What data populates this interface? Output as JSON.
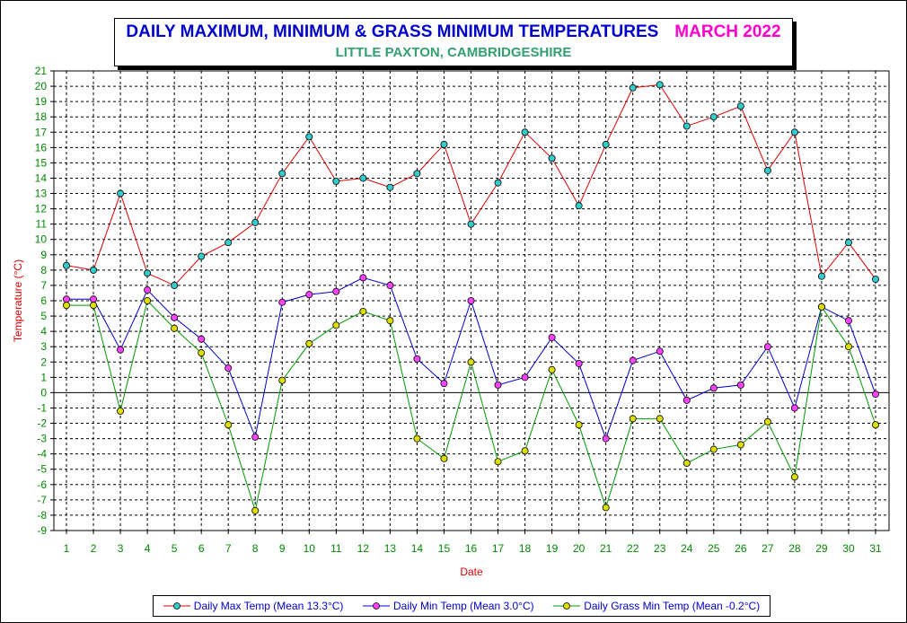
{
  "chart_data": {
    "type": "line",
    "title": "DAILY MAXIMUM, MINIMUM & GRASS MINIMUM TEMPERATURES",
    "title_date": "MARCH 2022",
    "subtitle": "LITTLE PAXTON, CAMBRIDGESHIRE",
    "xlabel": "Date",
    "ylabel": "Temperature (°C)",
    "ylim": [
      -9,
      21
    ],
    "grid": true,
    "legend_position": "bottom",
    "x": [
      1,
      2,
      3,
      4,
      5,
      6,
      7,
      8,
      9,
      10,
      11,
      12,
      13,
      14,
      15,
      16,
      17,
      18,
      19,
      20,
      21,
      22,
      23,
      24,
      25,
      26,
      27,
      28,
      29,
      30,
      31
    ],
    "series": [
      {
        "name": "Daily Max Temp (Mean 13.3°C)",
        "line_color": "#dd0000",
        "marker_color": "#33cccc",
        "values": [
          8.3,
          8.0,
          13.0,
          7.8,
          7.0,
          8.9,
          9.8,
          11.1,
          14.3,
          16.7,
          13.8,
          14.0,
          13.4,
          14.3,
          16.2,
          11.0,
          13.7,
          17.0,
          15.3,
          12.2,
          16.2,
          19.9,
          20.1,
          17.4,
          18.0,
          18.7,
          14.5,
          17.0,
          7.6,
          9.8,
          7.4
        ]
      },
      {
        "name": "Daily Min Temp (Mean 3.0°C)",
        "line_color": "#0000cc",
        "marker_color": "#ff44ff",
        "values": [
          6.1,
          6.1,
          2.8,
          6.7,
          4.9,
          3.5,
          1.6,
          -2.9,
          5.9,
          6.4,
          6.6,
          7.5,
          7.0,
          2.2,
          0.6,
          6.0,
          0.5,
          1.0,
          3.6,
          1.9,
          -3.0,
          2.1,
          2.7,
          -0.5,
          0.3,
          0.5,
          3.0,
          -1.0,
          5.6,
          4.7,
          -0.1
        ]
      },
      {
        "name": "Daily Grass Min Temp (Mean -0.2°C)",
        "line_color": "#009900",
        "marker_color": "#dddd00",
        "values": [
          5.7,
          5.7,
          -1.2,
          6.0,
          4.2,
          2.6,
          -2.1,
          -7.7,
          0.8,
          3.2,
          4.4,
          5.3,
          4.7,
          -3.0,
          -4.3,
          2.0,
          -4.5,
          -3.8,
          1.5,
          -2.1,
          -7.5,
          -1.7,
          -1.7,
          -4.6,
          -3.7,
          -3.4,
          -1.9,
          -5.5,
          5.6,
          3.0,
          -2.1
        ]
      }
    ],
    "colors": {
      "tick_label": "#008800",
      "axis_title": "#dd0000",
      "title": "#0000cc",
      "title_date": "#ff00cc",
      "subtitle": "#33a070",
      "legend_text": "#0000cc"
    }
  }
}
